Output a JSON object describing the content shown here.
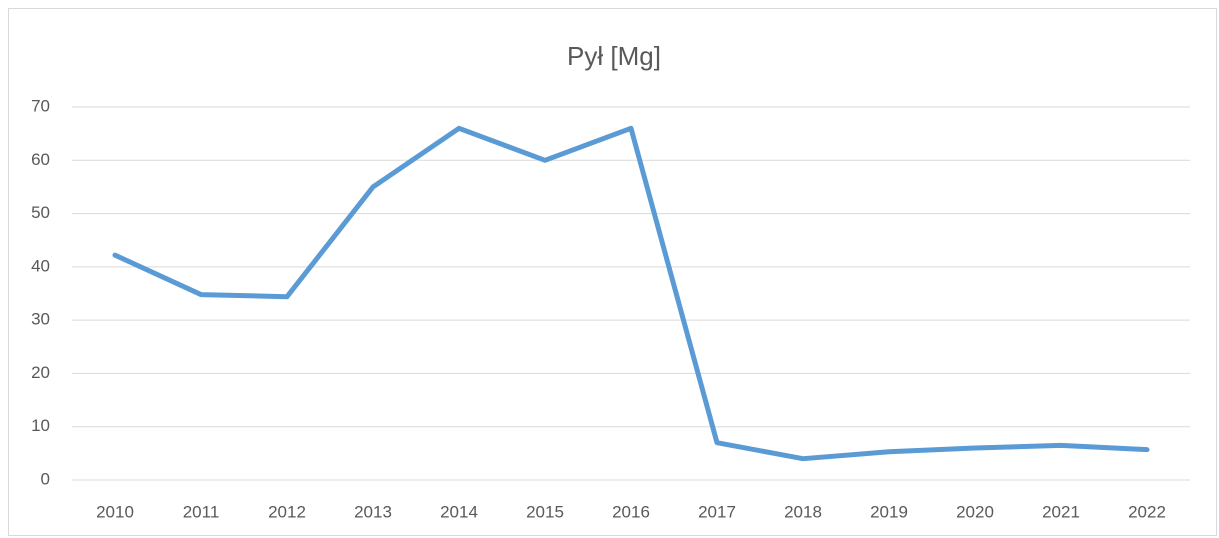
{
  "chart_data": {
    "type": "line",
    "title": "Pył [Mg]",
    "categories": [
      "2010",
      "2011",
      "2012",
      "2013",
      "2014",
      "2015",
      "2016",
      "2017",
      "2018",
      "2019",
      "2020",
      "2021",
      "2022"
    ],
    "series": [
      {
        "name": "Pył [Mg]",
        "color": "#5b9bd5",
        "values": [
          42.2,
          34.8,
          34.4,
          55,
          66,
          60,
          66,
          7,
          4,
          5.3,
          6,
          6.5,
          5.7
        ]
      }
    ],
    "ylim": [
      0,
      70
    ],
    "yticks": [
      0,
      10,
      20,
      30,
      40,
      50,
      60,
      70
    ],
    "grid": true
  }
}
